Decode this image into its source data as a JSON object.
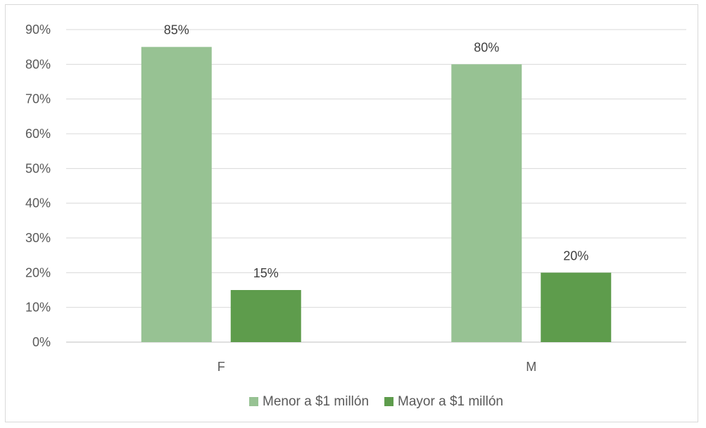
{
  "chart_data": {
    "type": "bar",
    "categories": [
      "F",
      "M"
    ],
    "series": [
      {
        "name": "Menor a $1 millón",
        "values": [
          85,
          80
        ],
        "labels": [
          "85%",
          "80%"
        ],
        "color": "#97c293"
      },
      {
        "name": "Mayor a $1 millón",
        "values": [
          15,
          20
        ],
        "labels": [
          "15%",
          "20%"
        ],
        "color": "#5e9c4c"
      }
    ],
    "y_ticks": [
      "0%",
      "10%",
      "20%",
      "30%",
      "40%",
      "50%",
      "60%",
      "70%",
      "80%",
      "90%"
    ],
    "ylim": [
      0,
      90
    ],
    "grid": true,
    "legend_position": "bottom",
    "gridline_color": "#d9d9d9",
    "axis_color": "#bfbfbf"
  }
}
